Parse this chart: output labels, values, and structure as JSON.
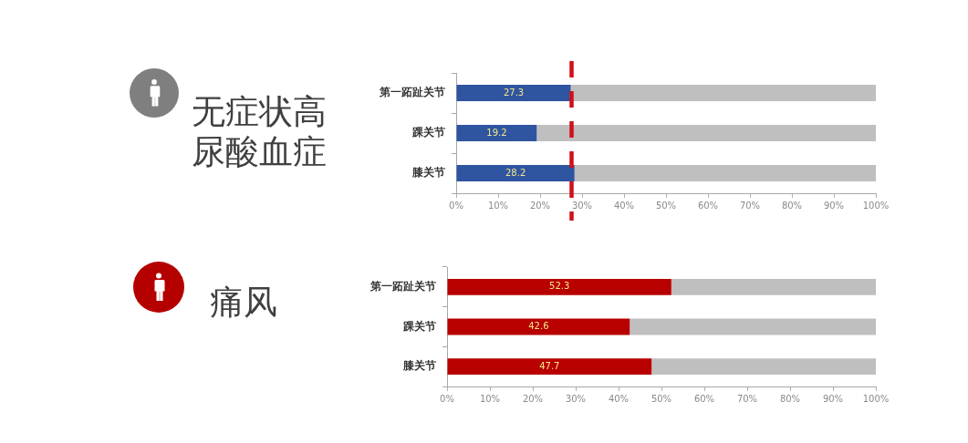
{
  "chart_data": [
    {
      "type": "bar",
      "title": "无症状高尿酸血症",
      "orientation": "horizontal",
      "stacked": true,
      "categories": [
        "第一跖趾关节",
        "踝关节",
        "膝关节"
      ],
      "series": [
        {
          "color": "#2f54a0",
          "values": [
            27.3,
            19.2,
            28.2
          ],
          "value_labels": [
            "27.3",
            "19.2",
            "28.2"
          ]
        },
        {
          "color": "#bfbfbf",
          "values": [
            72.7,
            80.8,
            71.8
          ]
        }
      ],
      "xlim": [
        0,
        100
      ],
      "xticks": [
        {
          "value": 0,
          "label": "0%"
        },
        {
          "value": 10,
          "label": "10%"
        },
        {
          "value": 20,
          "label": "20%"
        },
        {
          "value": 30,
          "label": "30%"
        },
        {
          "value": 40,
          "label": "40%"
        },
        {
          "value": 50,
          "label": "50%"
        },
        {
          "value": 60,
          "label": "60%"
        },
        {
          "value": 70,
          "label": "70%"
        },
        {
          "value": 80,
          "label": "80%"
        },
        {
          "value": 90,
          "label": "90%"
        },
        {
          "value": 100,
          "label": "100%"
        }
      ],
      "ref_lines": [
        {
          "axis": "x",
          "value": 27.5,
          "color": "#d0101a",
          "line_style": "dashed"
        }
      ]
    },
    {
      "type": "bar",
      "title": "痛风",
      "orientation": "horizontal",
      "stacked": true,
      "categories": [
        "第一跖趾关节",
        "踝关节",
        "膝关节"
      ],
      "series": [
        {
          "color": "#b80000",
          "values": [
            52.3,
            42.6,
            47.7
          ],
          "value_labels": [
            "52.3",
            "42.6",
            "47.7"
          ]
        },
        {
          "color": "#bfbfbf",
          "values": [
            47.7,
            57.4,
            52.3
          ]
        }
      ],
      "xlim": [
        0,
        100
      ],
      "xticks": [
        {
          "value": 0,
          "label": "0%"
        },
        {
          "value": 10,
          "label": "10%"
        },
        {
          "value": 20,
          "label": "20%"
        },
        {
          "value": 30,
          "label": "30%"
        },
        {
          "value": 40,
          "label": "40%"
        },
        {
          "value": 50,
          "label": "50%"
        },
        {
          "value": 60,
          "label": "60%"
        },
        {
          "value": 70,
          "label": "70%"
        },
        {
          "value": 80,
          "label": "80%"
        },
        {
          "value": 90,
          "label": "90%"
        },
        {
          "value": 100,
          "label": "100%"
        }
      ]
    }
  ]
}
